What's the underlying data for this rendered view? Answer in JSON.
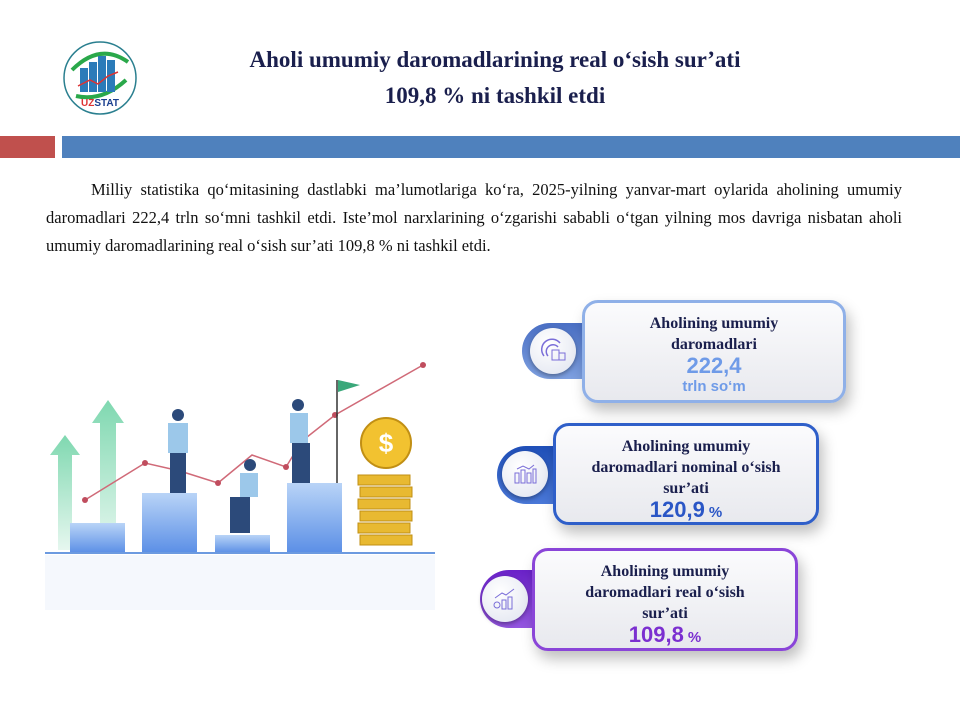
{
  "header": {
    "logo_text": "UZSTAT",
    "title_line1": "Aholi umumiy daromadlarining real o‘sish sur’ati",
    "title_line2": "109,8 % ni tashkil etdi"
  },
  "paragraph": "Milliy statistika qo‘mitasining dastlabki ma’lumotlariga ko‘ra, 2025-yilning yanvar-mart oylarida aholining umumiy daromadlari 222,4 trln so‘mni tashkil etdi. Iste’mol narxlarining o‘zgarishi sababli o‘tgan yilning mos davriga nisbatan aholi umumiy daromadlarining real o‘sish sur’ati 109,8 % ni tashkil etdi.",
  "cards": [
    {
      "label": "Aholining umumiy daromadlari",
      "value": "222,4",
      "unit": "trln so‘m",
      "icon": "coins-icon",
      "color": "#6f9be8"
    },
    {
      "label": "Aholining umumiy daromadlari nominal o‘sish sur’ati",
      "value": "120,9",
      "unit": "%",
      "icon": "bar-chart-icon",
      "color": "#2a56c6"
    },
    {
      "label": "Aholining umumiy daromadlari real o‘sish sur’ati",
      "value": "109,8",
      "unit": "%",
      "icon": "growth-chart-icon",
      "color": "#7b2fd0"
    }
  ],
  "colors": {
    "accent_red": "#c0504d",
    "accent_blue": "#4f81bd",
    "title": "#1a1f4d"
  }
}
